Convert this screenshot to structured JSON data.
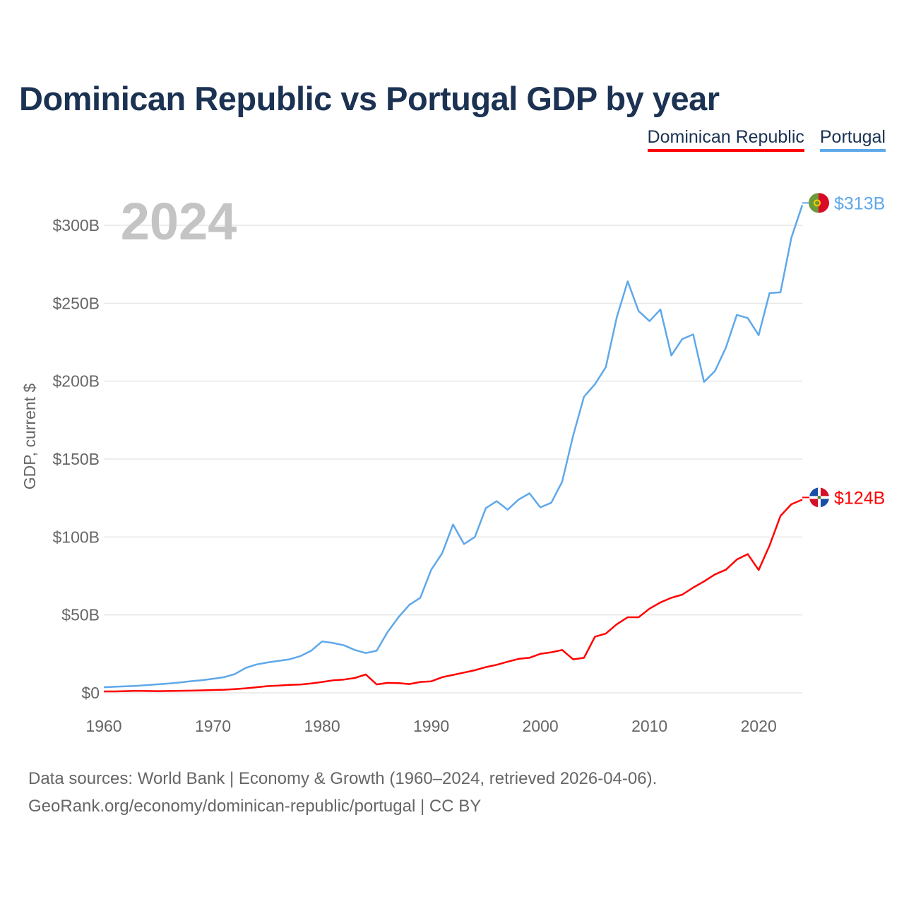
{
  "chart_data": {
    "type": "line",
    "title": "Dominican Republic vs Portugal GDP by year",
    "ylabel": "GDP, current $",
    "xlabel": "",
    "year_watermark": "2024",
    "ylim": [
      0,
      300
    ],
    "xlim": [
      1960,
      2024
    ],
    "y_ticks": [
      {
        "v": 0,
        "label": "$0"
      },
      {
        "v": 50,
        "label": "$50B"
      },
      {
        "v": 100,
        "label": "$100B"
      },
      {
        "v": 150,
        "label": "$150B"
      },
      {
        "v": 200,
        "label": "$200B"
      },
      {
        "v": 250,
        "label": "$250B"
      },
      {
        "v": 300,
        "label": "$300B"
      }
    ],
    "x_ticks": [
      {
        "v": 1960,
        "label": "1960"
      },
      {
        "v": 1970,
        "label": "1970"
      },
      {
        "v": 1980,
        "label": "1980"
      },
      {
        "v": 1990,
        "label": "1990"
      },
      {
        "v": 2000,
        "label": "2000"
      },
      {
        "v": 2010,
        "label": "2010"
      },
      {
        "v": 2020,
        "label": "2020"
      }
    ],
    "grid": true,
    "legend_position": "top-right",
    "start_year": 1960,
    "series": [
      {
        "name": "Dominican Republic",
        "color": "#ff0000",
        "end_label": "$124B",
        "flag": "dominican-republic",
        "values": [
          0.9,
          0.9,
          1.1,
          1.3,
          1.2,
          1.1,
          1.2,
          1.3,
          1.4,
          1.6,
          1.8,
          2.0,
          2.4,
          2.9,
          3.6,
          4.3,
          4.6,
          5.1,
          5.3,
          6.0,
          7.0,
          8.0,
          8.5,
          9.5,
          11.8,
          5.4,
          6.4,
          6.2,
          5.6,
          7.0,
          7.4,
          10.0,
          11.5,
          13.0,
          14.5,
          16.5,
          18.0,
          20.0,
          21.8,
          22.5,
          25.0,
          26.0,
          27.5,
          21.5,
          22.5,
          36.0,
          38.0,
          44.0,
          48.5,
          48.5,
          54.0,
          58.0,
          61.0,
          63.0,
          67.5,
          71.5,
          76.0,
          79.0,
          85.5,
          89.0,
          78.8,
          94.5,
          113.5,
          121.0,
          124.0
        ]
      },
      {
        "name": "Portugal",
        "color": "#5fa8ea",
        "end_label": "$313B",
        "flag": "portugal",
        "values": [
          3.6,
          3.9,
          4.2,
          4.5,
          5.0,
          5.5,
          6.0,
          6.7,
          7.5,
          8.1,
          9.0,
          10.0,
          12.0,
          16.0,
          18.2,
          19.5,
          20.5,
          21.5,
          23.5,
          27.0,
          33.0,
          32.0,
          30.5,
          27.5,
          25.5,
          27.0,
          39.0,
          48.5,
          56.5,
          61.0,
          79.0,
          89.5,
          108.0,
          95.5,
          100.0,
          118.5,
          123.0,
          117.5,
          124.0,
          128.0,
          119.0,
          122.0,
          135.5,
          165.0,
          190.0,
          198.0,
          209.0,
          241.0,
          264.0,
          245.0,
          238.5,
          246.0,
          216.5,
          227.0,
          230.0,
          199.5,
          206.5,
          221.5,
          242.5,
          240.5,
          229.5,
          256.5,
          257.0,
          292.0,
          313.0
        ]
      }
    ]
  },
  "footer": {
    "line1": "Data sources: World Bank | Economy & Growth (1960–2024, retrieved 2026-04-06).",
    "line2": "GeoRank.org/economy/dominican-republic/portugal | CC BY"
  }
}
